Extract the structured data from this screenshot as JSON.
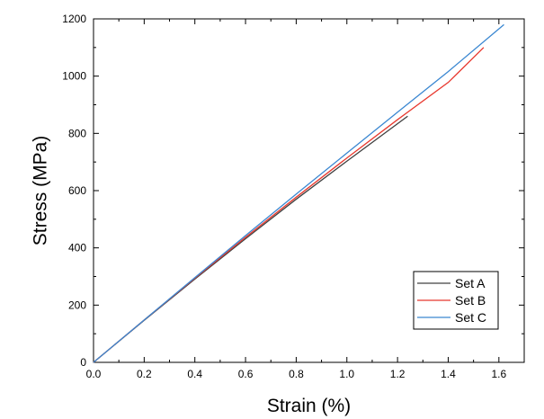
{
  "chart_data": {
    "type": "line",
    "title": "",
    "xlabel": "Strain (%)",
    "ylabel": "Stress (MPa)",
    "xlim": [
      0.0,
      1.7
    ],
    "ylim": [
      0,
      1200
    ],
    "xticks": [
      "0.0",
      "0.2",
      "0.4",
      "0.6",
      "0.8",
      "1.0",
      "1.2",
      "1.4",
      "1.6"
    ],
    "yticks": [
      "0",
      "200",
      "400",
      "600",
      "800",
      "1000",
      "1200"
    ],
    "grid": false,
    "legend_position": "bottom-right",
    "series": [
      {
        "name": "Set A",
        "color": "#404040",
        "x": [
          0.0,
          0.2,
          0.4,
          0.6,
          0.8,
          1.0,
          1.24
        ],
        "y": [
          0,
          147,
          291,
          432,
          570,
          703,
          860
        ]
      },
      {
        "name": "Set B",
        "color": "#e8382e",
        "x": [
          0.0,
          0.2,
          0.4,
          0.6,
          0.8,
          1.0,
          1.2,
          1.4,
          1.54
        ],
        "y": [
          0,
          148,
          294,
          437,
          577,
          714,
          848,
          978,
          1100
        ]
      },
      {
        "name": "Set C",
        "color": "#3a87d1",
        "x": [
          0.0,
          0.2,
          0.4,
          0.6,
          0.8,
          1.0,
          1.2,
          1.4,
          1.62
        ],
        "y": [
          0,
          148,
          296,
          443,
          588,
          731,
          874,
          1016,
          1180
        ]
      }
    ]
  }
}
